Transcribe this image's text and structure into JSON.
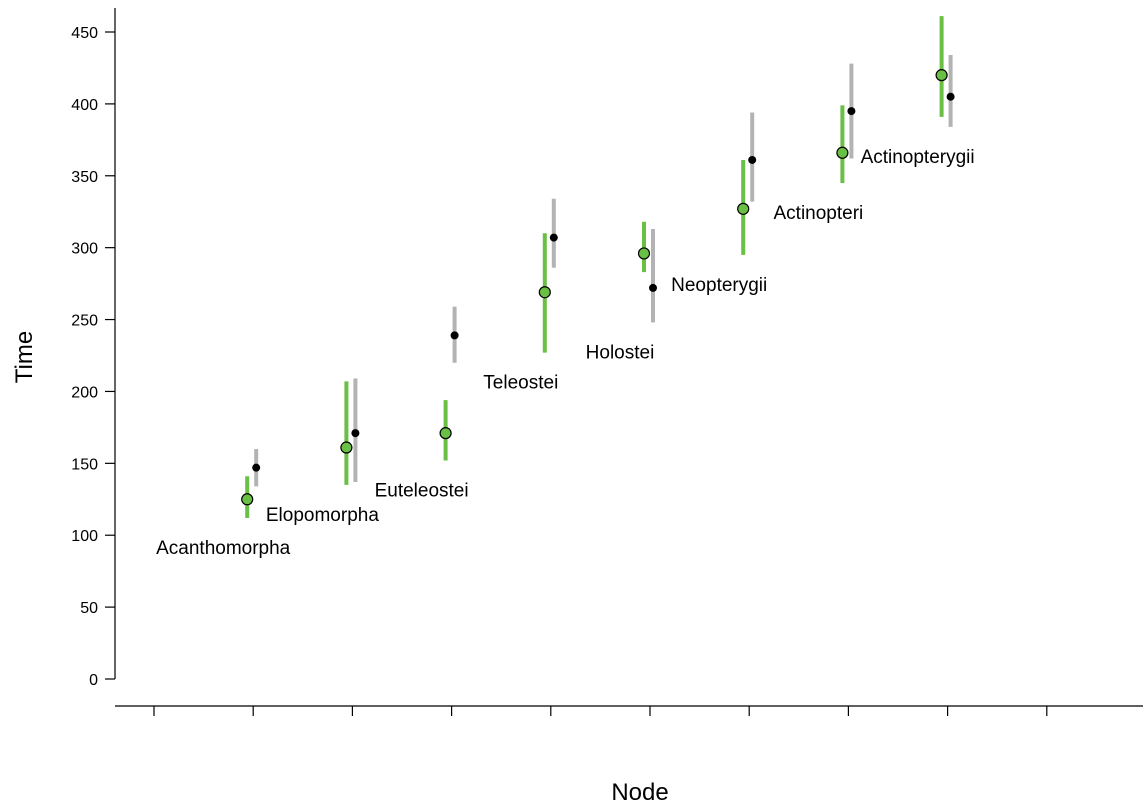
{
  "chart_data": {
    "type": "scatter",
    "xlabel": "Node",
    "ylabel": "Time",
    "ylim": [
      0,
      450
    ],
    "yticks": [
      0,
      50,
      100,
      150,
      200,
      250,
      300,
      350,
      400,
      450
    ],
    "x_tick_count": 10,
    "grid": false,
    "colors": {
      "series_a": "#6abf45",
      "series_b": "#000000",
      "interval_b": "#b3b3b3"
    },
    "nodes": [
      {
        "label": "Acanthomorpha",
        "a": {
          "value": 125,
          "lo": 112,
          "hi": 141
        },
        "b": {
          "value": 147,
          "lo": 134,
          "hi": 160
        }
      },
      {
        "label": "Elopomorpha",
        "a": {
          "value": 161,
          "lo": 135,
          "hi": 207
        },
        "b": {
          "value": 171,
          "lo": 137,
          "hi": 209
        }
      },
      {
        "label": "Euteleostei",
        "a": {
          "value": 171,
          "lo": 152,
          "hi": 194
        },
        "b": {
          "value": 239,
          "lo": 220,
          "hi": 259
        }
      },
      {
        "label": "Teleostei",
        "a": {
          "value": 269,
          "lo": 227,
          "hi": 310
        },
        "b": {
          "value": 307,
          "lo": 286,
          "hi": 334
        }
      },
      {
        "label": "Holostei",
        "a": {
          "value": 296,
          "lo": 283,
          "hi": 318
        },
        "b": {
          "value": 272,
          "lo": 248,
          "hi": 313
        }
      },
      {
        "label": "Neopterygii",
        "a": {
          "value": 327,
          "lo": 295,
          "hi": 361
        },
        "b": {
          "value": 361,
          "lo": 332,
          "hi": 394
        }
      },
      {
        "label": "Actinopteri",
        "a": {
          "value": 366,
          "lo": 345,
          "hi": 399
        },
        "b": {
          "value": 395,
          "lo": 362,
          "hi": 428
        }
      },
      {
        "label": "Actinopterygii",
        "a": {
          "value": 420,
          "lo": 391,
          "hi": 461
        },
        "b": {
          "value": 405,
          "lo": 384,
          "hi": 434
        }
      }
    ]
  }
}
